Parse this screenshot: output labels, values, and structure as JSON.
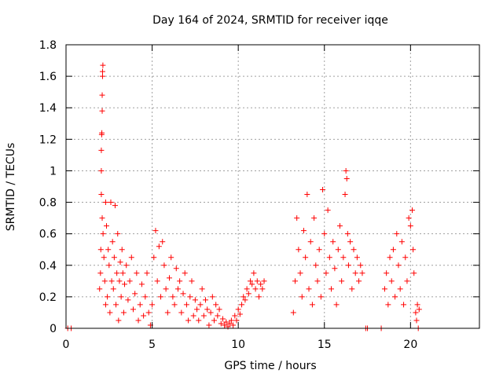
{
  "chart_data": {
    "type": "scatter",
    "title": "Day 164 of 2024, SRMTID for receiver iqqe",
    "xlabel": "GPS time / hours",
    "ylabel": "SRMTID / TECUs",
    "xlim": [
      0,
      24
    ],
    "ylim": [
      0,
      1.8
    ],
    "xticks": [
      0,
      5,
      10,
      15,
      20
    ],
    "xtick_labels": [
      "0",
      "5",
      "10",
      "15",
      "20"
    ],
    "yticks": [
      0,
      0.2,
      0.4,
      0.6,
      0.8,
      1.0,
      1.2,
      1.4,
      1.6,
      1.8
    ],
    "ytick_labels": [
      "0",
      "0.2",
      "0.4",
      "0.6",
      "0.8",
      "1",
      "1.2",
      "1.4",
      "1.6",
      "1.8"
    ],
    "grid": true,
    "marker": "+",
    "color": "#ff0000",
    "series": [
      {
        "name": "SRMTID",
        "points": [
          [
            0.1,
            0.0
          ],
          [
            0.3,
            0.0
          ],
          [
            1.95,
            0.25
          ],
          [
            2.0,
            0.35
          ],
          [
            2.02,
            0.5
          ],
          [
            2.05,
            0.85
          ],
          [
            2.05,
            1.0
          ],
          [
            2.05,
            1.13
          ],
          [
            2.07,
            1.23
          ],
          [
            2.08,
            1.24
          ],
          [
            2.1,
            1.38
          ],
          [
            2.1,
            1.48
          ],
          [
            2.12,
            1.6
          ],
          [
            2.12,
            1.63
          ],
          [
            2.14,
            1.67
          ],
          [
            2.1,
            0.7
          ],
          [
            2.15,
            0.6
          ],
          [
            2.2,
            0.45
          ],
          [
            2.25,
            0.3
          ],
          [
            2.3,
            0.15
          ],
          [
            2.3,
            0.8
          ],
          [
            2.35,
            0.65
          ],
          [
            2.4,
            0.2
          ],
          [
            2.45,
            0.5
          ],
          [
            2.5,
            0.4
          ],
          [
            2.55,
            0.1
          ],
          [
            2.6,
            0.8
          ],
          [
            2.65,
            0.3
          ],
          [
            2.7,
            0.55
          ],
          [
            2.75,
            0.25
          ],
          [
            2.8,
            0.45
          ],
          [
            2.85,
            0.78
          ],
          [
            2.9,
            0.15
          ],
          [
            2.95,
            0.35
          ],
          [
            3.0,
            0.6
          ],
          [
            3.05,
            0.05
          ],
          [
            3.1,
            0.3
          ],
          [
            3.15,
            0.42
          ],
          [
            3.2,
            0.2
          ],
          [
            3.25,
            0.5
          ],
          [
            3.3,
            0.35
          ],
          [
            3.35,
            0.1
          ],
          [
            3.4,
            0.28
          ],
          [
            3.5,
            0.4
          ],
          [
            3.6,
            0.18
          ],
          [
            3.7,
            0.3
          ],
          [
            3.8,
            0.45
          ],
          [
            3.9,
            0.12
          ],
          [
            4.0,
            0.22
          ],
          [
            4.1,
            0.35
          ],
          [
            4.2,
            0.05
          ],
          [
            4.3,
            0.15
          ],
          [
            4.4,
            0.28
          ],
          [
            4.5,
            0.08
          ],
          [
            4.6,
            0.2
          ],
          [
            4.7,
            0.35
          ],
          [
            4.8,
            0.1
          ],
          [
            4.9,
            0.02
          ],
          [
            5.0,
            0.15
          ],
          [
            5.1,
            0.45
          ],
          [
            5.2,
            0.62
          ],
          [
            5.3,
            0.3
          ],
          [
            5.4,
            0.52
          ],
          [
            5.5,
            0.2
          ],
          [
            5.6,
            0.55
          ],
          [
            5.7,
            0.4
          ],
          [
            5.8,
            0.25
          ],
          [
            5.9,
            0.1
          ],
          [
            6.0,
            0.32
          ],
          [
            6.1,
            0.45
          ],
          [
            6.2,
            0.2
          ],
          [
            6.3,
            0.15
          ],
          [
            6.4,
            0.38
          ],
          [
            6.5,
            0.25
          ],
          [
            6.6,
            0.3
          ],
          [
            6.7,
            0.1
          ],
          [
            6.8,
            0.22
          ],
          [
            6.9,
            0.35
          ],
          [
            7.0,
            0.15
          ],
          [
            7.1,
            0.05
          ],
          [
            7.2,
            0.2
          ],
          [
            7.3,
            0.3
          ],
          [
            7.4,
            0.08
          ],
          [
            7.5,
            0.18
          ],
          [
            7.6,
            0.12
          ],
          [
            7.7,
            0.05
          ],
          [
            7.8,
            0.15
          ],
          [
            7.9,
            0.25
          ],
          [
            8.0,
            0.08
          ],
          [
            8.1,
            0.18
          ],
          [
            8.2,
            0.12
          ],
          [
            8.3,
            0.02
          ],
          [
            8.4,
            0.1
          ],
          [
            8.5,
            0.2
          ],
          [
            8.6,
            0.05
          ],
          [
            8.7,
            0.15
          ],
          [
            8.8,
            0.08
          ],
          [
            8.9,
            0.12
          ],
          [
            9.0,
            0.03
          ],
          [
            9.1,
            0.06
          ],
          [
            9.2,
            0.02
          ],
          [
            9.3,
            0.04
          ],
          [
            9.4,
            0.01
          ],
          [
            9.5,
            0.03
          ],
          [
            9.6,
            0.05
          ],
          [
            9.7,
            0.02
          ],
          [
            9.8,
            0.08
          ],
          [
            9.9,
            0.05
          ],
          [
            10.0,
            0.12
          ],
          [
            10.1,
            0.09
          ],
          [
            10.2,
            0.15
          ],
          [
            10.3,
            0.2
          ],
          [
            10.4,
            0.18
          ],
          [
            10.5,
            0.25
          ],
          [
            10.6,
            0.22
          ],
          [
            10.7,
            0.3
          ],
          [
            10.8,
            0.28
          ],
          [
            10.9,
            0.35
          ],
          [
            11.0,
            0.25
          ],
          [
            11.1,
            0.3
          ],
          [
            11.2,
            0.2
          ],
          [
            11.3,
            0.28
          ],
          [
            11.4,
            0.25
          ],
          [
            11.5,
            0.3
          ],
          [
            13.2,
            0.1
          ],
          [
            13.3,
            0.3
          ],
          [
            13.4,
            0.7
          ],
          [
            13.5,
            0.5
          ],
          [
            13.6,
            0.35
          ],
          [
            13.7,
            0.2
          ],
          [
            13.8,
            0.62
          ],
          [
            13.9,
            0.45
          ],
          [
            14.0,
            0.85
          ],
          [
            14.1,
            0.25
          ],
          [
            14.2,
            0.55
          ],
          [
            14.3,
            0.15
          ],
          [
            14.4,
            0.7
          ],
          [
            14.5,
            0.4
          ],
          [
            14.6,
            0.3
          ],
          [
            14.7,
            0.5
          ],
          [
            14.8,
            0.2
          ],
          [
            14.9,
            0.88
          ],
          [
            15.0,
            0.6
          ],
          [
            15.1,
            0.35
          ],
          [
            15.2,
            0.75
          ],
          [
            15.3,
            0.45
          ],
          [
            15.4,
            0.25
          ],
          [
            15.5,
            0.55
          ],
          [
            15.6,
            0.38
          ],
          [
            15.7,
            0.15
          ],
          [
            15.8,
            0.5
          ],
          [
            15.9,
            0.65
          ],
          [
            16.0,
            0.3
          ],
          [
            16.1,
            0.45
          ],
          [
            16.2,
            0.85
          ],
          [
            16.25,
            1.0
          ],
          [
            16.3,
            0.95
          ],
          [
            16.35,
            0.6
          ],
          [
            16.4,
            0.4
          ],
          [
            16.5,
            0.55
          ],
          [
            16.6,
            0.25
          ],
          [
            16.7,
            0.5
          ],
          [
            16.8,
            0.35
          ],
          [
            16.9,
            0.45
          ],
          [
            17.0,
            0.3
          ],
          [
            17.1,
            0.4
          ],
          [
            17.2,
            0.35
          ],
          [
            17.4,
            0.0
          ],
          [
            17.5,
            0.0
          ],
          [
            18.3,
            0.0
          ],
          [
            18.5,
            0.25
          ],
          [
            18.6,
            0.35
          ],
          [
            18.7,
            0.15
          ],
          [
            18.8,
            0.45
          ],
          [
            18.9,
            0.3
          ],
          [
            19.0,
            0.5
          ],
          [
            19.1,
            0.2
          ],
          [
            19.2,
            0.6
          ],
          [
            19.3,
            0.4
          ],
          [
            19.4,
            0.25
          ],
          [
            19.5,
            0.55
          ],
          [
            19.6,
            0.15
          ],
          [
            19.7,
            0.45
          ],
          [
            19.8,
            0.3
          ],
          [
            19.9,
            0.7
          ],
          [
            20.0,
            0.65
          ],
          [
            20.1,
            0.75
          ],
          [
            20.15,
            0.5
          ],
          [
            20.2,
            0.35
          ],
          [
            20.3,
            0.1
          ],
          [
            20.35,
            0.05
          ],
          [
            20.4,
            0.15
          ],
          [
            20.45,
            0.0
          ],
          [
            20.5,
            0.12
          ]
        ]
      }
    ]
  }
}
